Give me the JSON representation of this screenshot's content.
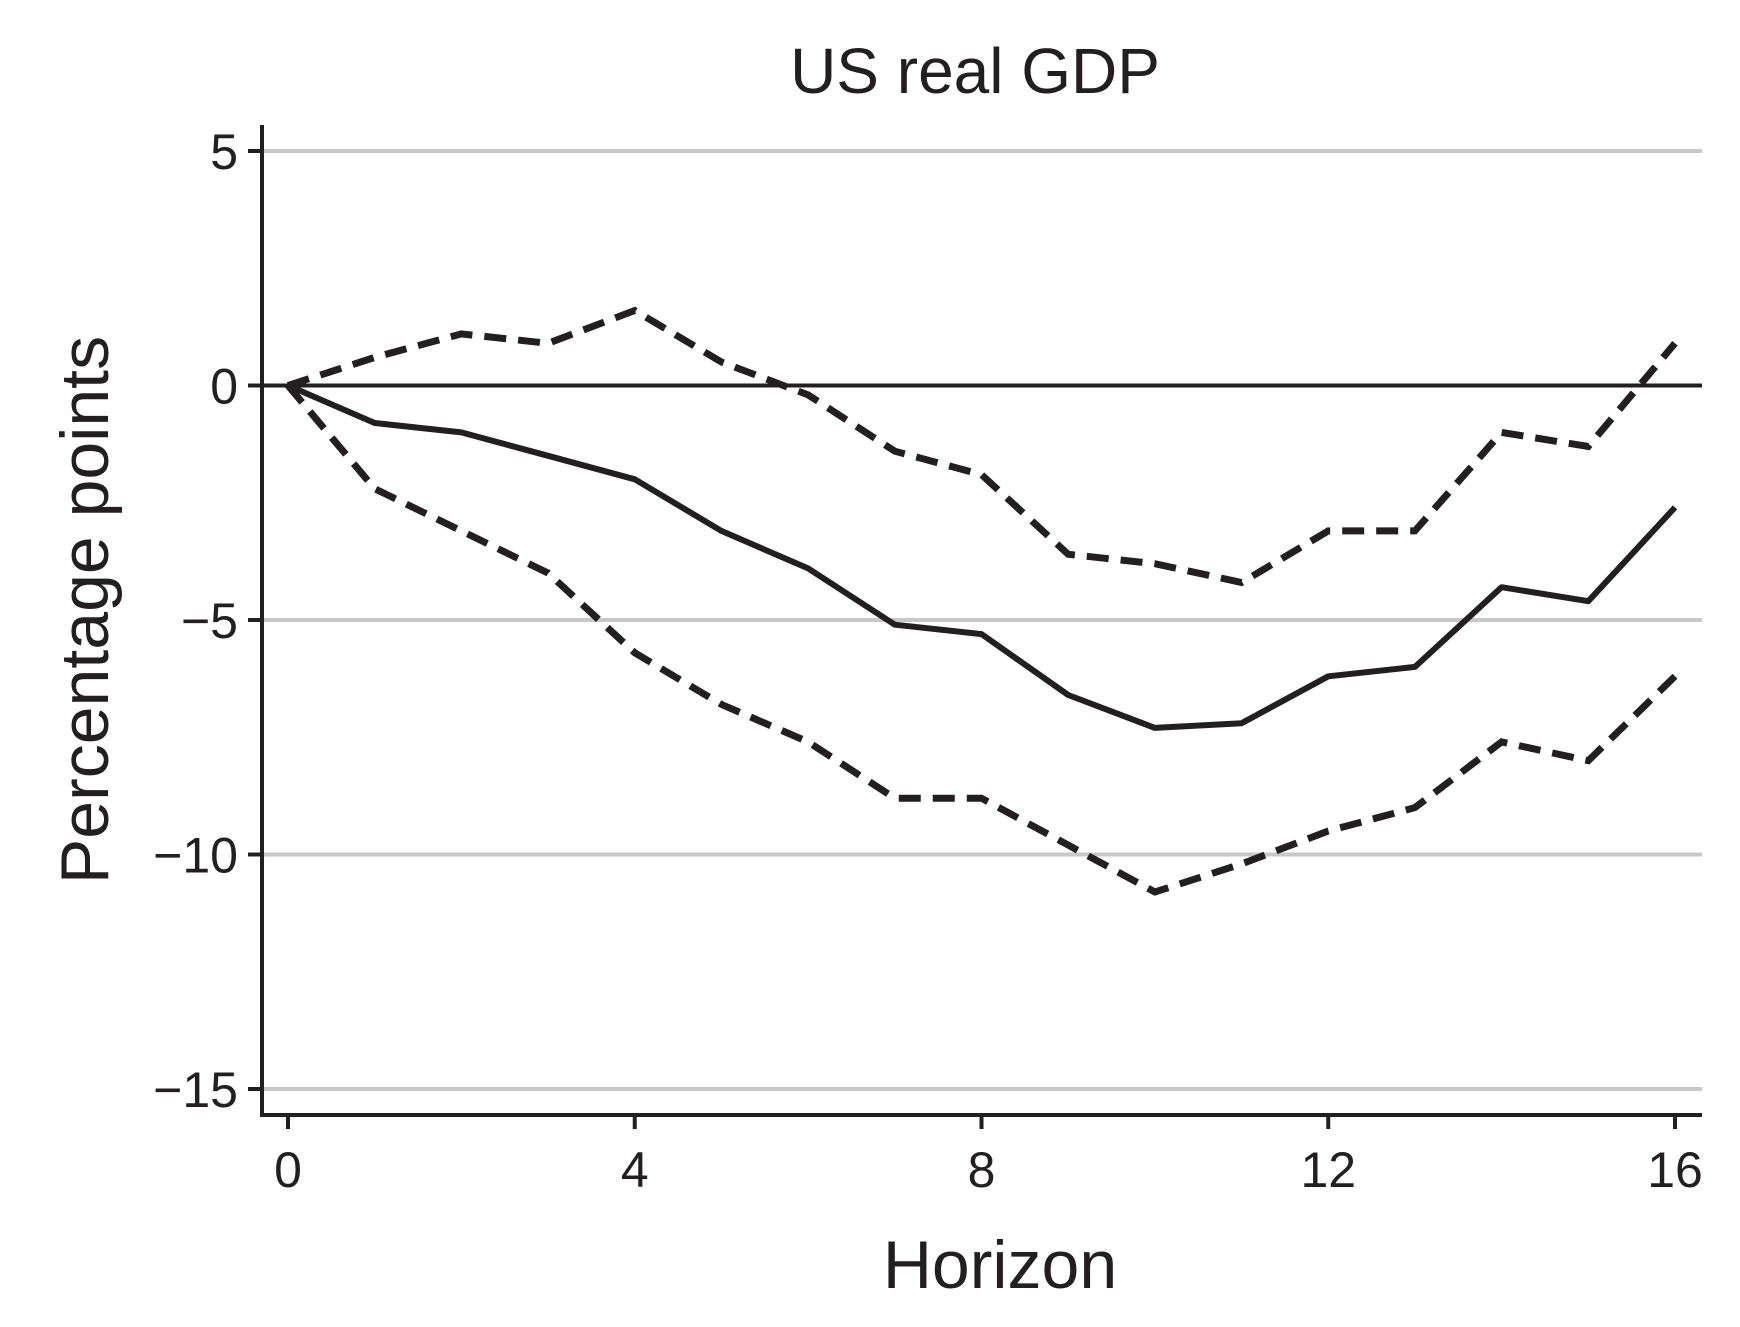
{
  "chart_data": {
    "type": "line",
    "title": "US real GDP",
    "xlabel": "Horizon",
    "ylabel": "Percentage points",
    "xlim": [
      0,
      16
    ],
    "ylim": [
      -15,
      5
    ],
    "xticks": [
      0,
      4,
      8,
      12,
      16
    ],
    "yticks": [
      5,
      0,
      -5,
      -10,
      -15
    ],
    "ytick_labels": [
      "5",
      "0",
      "−5",
      "−10",
      "−15"
    ],
    "grid": true,
    "x": [
      0,
      1,
      2,
      3,
      4,
      5,
      6,
      7,
      8,
      9,
      10,
      11,
      12,
      13,
      14,
      15,
      16
    ],
    "series": [
      {
        "style": "solid",
        "values": [
          0,
          -0.8,
          -1.0,
          -1.5,
          -2.0,
          -3.1,
          -3.9,
          -5.1,
          -5.3,
          -6.6,
          -7.3,
          -7.2,
          -6.2,
          -6.0,
          -4.3,
          -4.6,
          -2.6
        ]
      },
      {
        "style": "dashed",
        "values": [
          0,
          0.6,
          1.1,
          0.9,
          1.6,
          0.5,
          -0.2,
          -1.4,
          -1.9,
          -3.6,
          -3.8,
          -4.2,
          -3.1,
          -3.1,
          -1.0,
          -1.3,
          0.9
        ]
      },
      {
        "style": "dashed",
        "values": [
          0,
          -2.2,
          -3.1,
          -4.0,
          -5.7,
          -6.8,
          -7.6,
          -8.8,
          -8.8,
          -9.8,
          -10.8,
          -10.2,
          -9.5,
          -9.0,
          -7.6,
          -8.0,
          -6.2
        ]
      }
    ],
    "colors": {
      "line": "#231f20",
      "grid": "#c8c8c8"
    }
  }
}
